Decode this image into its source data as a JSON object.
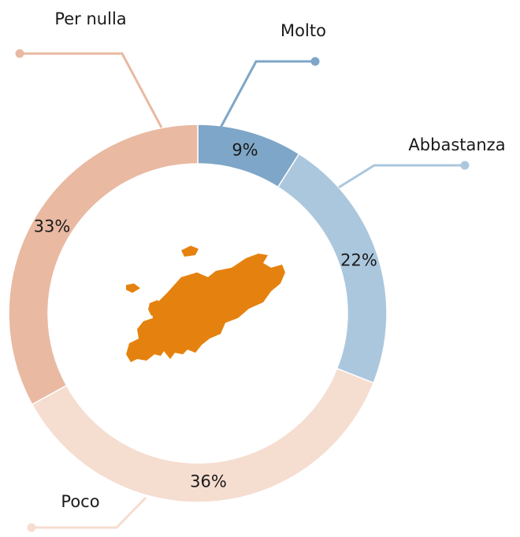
{
  "chart_data": {
    "type": "donut",
    "categories": [
      "Molto",
      "Abbastanza",
      "Poco",
      "Per nulla"
    ],
    "values": [
      9,
      22,
      36,
      33
    ],
    "value_labels": [
      "9%",
      "22%",
      "36%",
      "33%"
    ],
    "colors": [
      "#7ea6c8",
      "#abc7dd",
      "#f5ddd0",
      "#e9b9a2"
    ]
  }
}
